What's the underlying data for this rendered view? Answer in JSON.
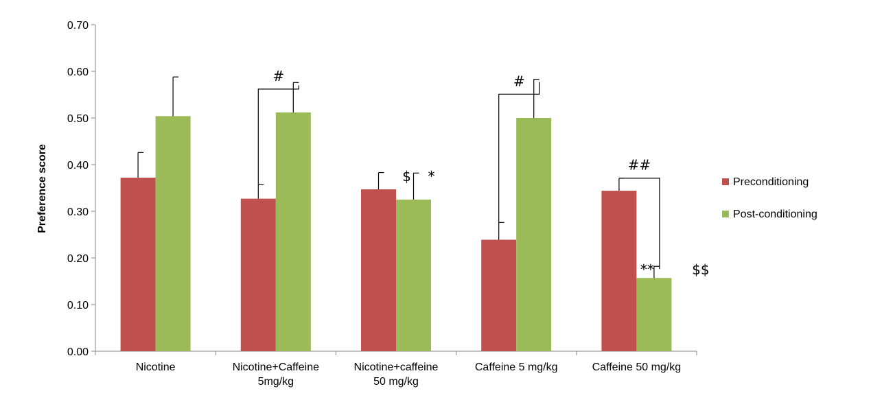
{
  "chart_data": {
    "type": "bar",
    "title": "",
    "xlabel": "",
    "ylabel": "Preference score",
    "ylim": [
      0,
      0.7
    ],
    "yticks": [
      "0.00",
      "0.10",
      "0.20",
      "0.30",
      "0.40",
      "0.50",
      "0.60",
      "0.70"
    ],
    "grid": false,
    "legend_position": "right",
    "categories": [
      [
        "Nicotine"
      ],
      [
        "Nicotine+Caffeine",
        "5mg/kg"
      ],
      [
        "Nicotine+caffeine",
        "50 mg/kg"
      ],
      [
        "Caffeine 5 mg/kg"
      ],
      [
        "Caffeine 50 mg/kg"
      ]
    ],
    "series": [
      {
        "name": "Preconditioning",
        "color": "#c0504d",
        "values": [
          0.372,
          0.327,
          0.347,
          0.239,
          0.344
        ],
        "errors": [
          0.054,
          0.031,
          0.036,
          0.037,
          0.027
        ]
      },
      {
        "name": "Post-conditioning",
        "color": "#9bbb59",
        "values": [
          0.504,
          0.512,
          0.325,
          0.5,
          0.157
        ],
        "errors": [
          0.084,
          0.064,
          0.057,
          0.083,
          0.025
        ]
      }
    ],
    "annotations": [
      {
        "text": "#",
        "category": 1,
        "bracket": true,
        "top": 0.562
      },
      {
        "text": "$",
        "category": 2,
        "series": 1,
        "offset": "left"
      },
      {
        "text": "*",
        "category": 2,
        "series": 1,
        "offset": "right"
      },
      {
        "text": "#",
        "category": 3,
        "bracket": true,
        "top": 0.551
      },
      {
        "text": "##",
        "category": 4,
        "bracket": true,
        "top": 0.371
      },
      {
        "text": "**",
        "category": 4,
        "series": 1,
        "offset": "left"
      },
      {
        "text": "$$",
        "category": 4,
        "series": 1,
        "offset": "far-right"
      }
    ]
  }
}
